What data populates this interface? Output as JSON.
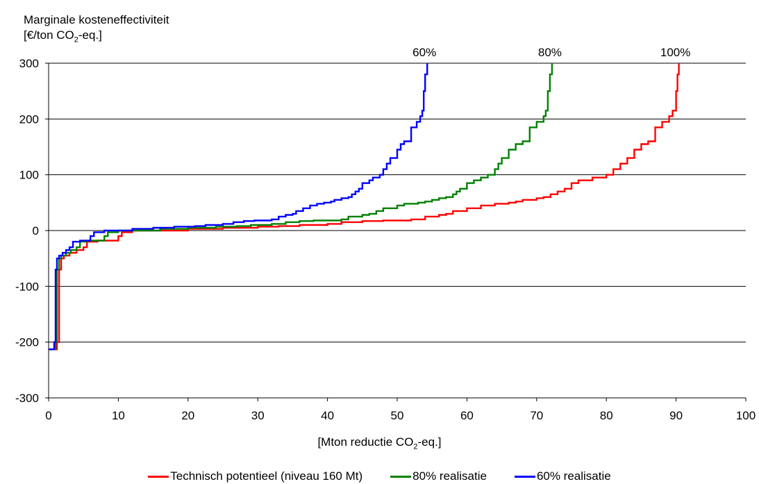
{
  "chart_data": {
    "type": "line",
    "ylabel_line1": "Marginale kosteneffectiviteit",
    "ylabel_line2_prefix": "[€/ton CO",
    "ylabel_line2_sub": "2",
    "ylabel_line2_suffix": "-eq.]",
    "xlabel_prefix": "[Mton reductie CO",
    "xlabel_sub": "2",
    "xlabel_suffix": "-eq.]",
    "xlim": [
      0,
      100
    ],
    "ylim": [
      -300,
      300
    ],
    "xticks": [
      0,
      10,
      20,
      30,
      40,
      50,
      60,
      70,
      80,
      90,
      100
    ],
    "yticks": [
      -300,
      -200,
      -100,
      0,
      100,
      200,
      300
    ],
    "grid": "horizontal",
    "legend_position": "bottom",
    "annotations": [
      {
        "text": "60%",
        "x": 54.3,
        "y": 300
      },
      {
        "text": "80%",
        "x": 72.3,
        "y": 300
      },
      {
        "text": "100%",
        "x": 90.3,
        "y": 300
      }
    ],
    "series": [
      {
        "name": "Technisch potentieel (niveau 160 Mt)",
        "color": "#ff0000",
        "points": [
          [
            0,
            -213
          ],
          [
            1.2,
            -213
          ],
          [
            1.2,
            -200
          ],
          [
            1.5,
            -200
          ],
          [
            1.5,
            -70
          ],
          [
            1.8,
            -70
          ],
          [
            1.8,
            -50
          ],
          [
            2.2,
            -50
          ],
          [
            2.2,
            -45
          ],
          [
            3,
            -45
          ],
          [
            3,
            -40
          ],
          [
            4,
            -40
          ],
          [
            4,
            -35
          ],
          [
            5,
            -35
          ],
          [
            5,
            -30
          ],
          [
            5.5,
            -30
          ],
          [
            5.5,
            -20
          ],
          [
            7,
            -20
          ],
          [
            7,
            -18
          ],
          [
            10,
            -18
          ],
          [
            10,
            -10
          ],
          [
            10.5,
            -10
          ],
          [
            10.5,
            -3
          ],
          [
            12,
            -3
          ],
          [
            12,
            0
          ],
          [
            20,
            0
          ],
          [
            20,
            3
          ],
          [
            25,
            3
          ],
          [
            25,
            5
          ],
          [
            30,
            5
          ],
          [
            30,
            7
          ],
          [
            33,
            7
          ],
          [
            33,
            8
          ],
          [
            36,
            8
          ],
          [
            36,
            10
          ],
          [
            40,
            10
          ],
          [
            40,
            12
          ],
          [
            42,
            12
          ],
          [
            42,
            15
          ],
          [
            45,
            15
          ],
          [
            45,
            17
          ],
          [
            48,
            17
          ],
          [
            48,
            18
          ],
          [
            52,
            18
          ],
          [
            52,
            20
          ],
          [
            54,
            20
          ],
          [
            54,
            25
          ],
          [
            56,
            25
          ],
          [
            56,
            28
          ],
          [
            57,
            28
          ],
          [
            57,
            30
          ],
          [
            58,
            30
          ],
          [
            58,
            35
          ],
          [
            60,
            35
          ],
          [
            60,
            40
          ],
          [
            62,
            40
          ],
          [
            62,
            45
          ],
          [
            64,
            45
          ],
          [
            64,
            48
          ],
          [
            66,
            48
          ],
          [
            66,
            50
          ],
          [
            67,
            50
          ],
          [
            67,
            52
          ],
          [
            68,
            52
          ],
          [
            68,
            55
          ],
          [
            70,
            55
          ],
          [
            70,
            58
          ],
          [
            71,
            58
          ],
          [
            71,
            60
          ],
          [
            72,
            60
          ],
          [
            72,
            65
          ],
          [
            73,
            65
          ],
          [
            73,
            70
          ],
          [
            74,
            70
          ],
          [
            74,
            75
          ],
          [
            75,
            75
          ],
          [
            75,
            85
          ],
          [
            76,
            85
          ],
          [
            76,
            90
          ],
          [
            78,
            90
          ],
          [
            78,
            95
          ],
          [
            80,
            95
          ],
          [
            80,
            100
          ],
          [
            81,
            100
          ],
          [
            81,
            110
          ],
          [
            82,
            110
          ],
          [
            82,
            120
          ],
          [
            83,
            120
          ],
          [
            83,
            130
          ],
          [
            84,
            130
          ],
          [
            84,
            145
          ],
          [
            85,
            145
          ],
          [
            85,
            155
          ],
          [
            86,
            155
          ],
          [
            86,
            160
          ],
          [
            87,
            160
          ],
          [
            87,
            185
          ],
          [
            88,
            185
          ],
          [
            88,
            195
          ],
          [
            89,
            195
          ],
          [
            89,
            205
          ],
          [
            89.5,
            205
          ],
          [
            89.5,
            215
          ],
          [
            90,
            215
          ],
          [
            90,
            250
          ],
          [
            90.2,
            250
          ],
          [
            90.2,
            280
          ],
          [
            90.4,
            280
          ],
          [
            90.4,
            300
          ]
        ]
      },
      {
        "name": "80% realisatie",
        "color": "#008000",
        "points": [
          [
            0,
            -213
          ],
          [
            1,
            -213
          ],
          [
            1,
            -200
          ],
          [
            1.2,
            -200
          ],
          [
            1.2,
            -70
          ],
          [
            1.5,
            -70
          ],
          [
            1.5,
            -50
          ],
          [
            1.8,
            -50
          ],
          [
            1.8,
            -45
          ],
          [
            2.5,
            -45
          ],
          [
            2.5,
            -40
          ],
          [
            3.2,
            -40
          ],
          [
            3.2,
            -35
          ],
          [
            4,
            -35
          ],
          [
            4,
            -30
          ],
          [
            4.5,
            -30
          ],
          [
            4.5,
            -20
          ],
          [
            5.5,
            -20
          ],
          [
            5.5,
            -18
          ],
          [
            8,
            -18
          ],
          [
            8,
            -10
          ],
          [
            8.5,
            -10
          ],
          [
            8.5,
            -3
          ],
          [
            10,
            -3
          ],
          [
            10,
            0
          ],
          [
            16,
            0
          ],
          [
            16,
            3
          ],
          [
            20,
            3
          ],
          [
            20,
            5
          ],
          [
            24,
            5
          ],
          [
            24,
            7
          ],
          [
            27,
            7
          ],
          [
            27,
            8
          ],
          [
            29,
            8
          ],
          [
            29,
            10
          ],
          [
            32,
            10
          ],
          [
            32,
            12
          ],
          [
            34,
            12
          ],
          [
            34,
            15
          ],
          [
            36,
            15
          ],
          [
            36,
            17
          ],
          [
            38,
            17
          ],
          [
            38,
            18
          ],
          [
            42,
            18
          ],
          [
            42,
            20
          ],
          [
            43,
            20
          ],
          [
            43,
            25
          ],
          [
            45,
            25
          ],
          [
            45,
            28
          ],
          [
            46,
            28
          ],
          [
            46,
            30
          ],
          [
            47,
            30
          ],
          [
            47,
            35
          ],
          [
            48,
            35
          ],
          [
            48,
            40
          ],
          [
            50,
            40
          ],
          [
            50,
            45
          ],
          [
            51,
            45
          ],
          [
            51,
            48
          ],
          [
            53,
            48
          ],
          [
            53,
            50
          ],
          [
            54,
            50
          ],
          [
            54,
            52
          ],
          [
            55,
            52
          ],
          [
            55,
            55
          ],
          [
            56,
            55
          ],
          [
            56,
            58
          ],
          [
            57,
            58
          ],
          [
            57,
            60
          ],
          [
            58,
            60
          ],
          [
            58,
            65
          ],
          [
            58.5,
            65
          ],
          [
            58.5,
            70
          ],
          [
            59,
            70
          ],
          [
            59,
            75
          ],
          [
            60,
            75
          ],
          [
            60,
            85
          ],
          [
            61,
            85
          ],
          [
            61,
            90
          ],
          [
            62,
            90
          ],
          [
            62,
            95
          ],
          [
            63,
            95
          ],
          [
            63,
            100
          ],
          [
            64,
            100
          ],
          [
            64,
            110
          ],
          [
            64.5,
            110
          ],
          [
            64.5,
            120
          ],
          [
            65,
            120
          ],
          [
            65,
            130
          ],
          [
            66,
            130
          ],
          [
            66,
            145
          ],
          [
            67,
            145
          ],
          [
            67,
            155
          ],
          [
            68,
            155
          ],
          [
            68,
            160
          ],
          [
            69,
            160
          ],
          [
            69,
            185
          ],
          [
            70,
            185
          ],
          [
            70,
            195
          ],
          [
            71,
            195
          ],
          [
            71,
            205
          ],
          [
            71.3,
            205
          ],
          [
            71.3,
            215
          ],
          [
            71.6,
            215
          ],
          [
            71.6,
            250
          ],
          [
            71.9,
            250
          ],
          [
            71.9,
            280
          ],
          [
            72.2,
            280
          ],
          [
            72.2,
            300
          ]
        ]
      },
      {
        "name": "60% realisatie",
        "color": "#0000ff",
        "points": [
          [
            0,
            -213
          ],
          [
            0.8,
            -213
          ],
          [
            0.8,
            -200
          ],
          [
            1,
            -200
          ],
          [
            1,
            -70
          ],
          [
            1.2,
            -70
          ],
          [
            1.2,
            -50
          ],
          [
            1.5,
            -50
          ],
          [
            1.5,
            -45
          ],
          [
            2,
            -45
          ],
          [
            2,
            -40
          ],
          [
            2.5,
            -40
          ],
          [
            2.5,
            -35
          ],
          [
            3,
            -35
          ],
          [
            3,
            -30
          ],
          [
            3.5,
            -30
          ],
          [
            3.5,
            -20
          ],
          [
            4.5,
            -20
          ],
          [
            4.5,
            -18
          ],
          [
            6,
            -18
          ],
          [
            6,
            -10
          ],
          [
            6.5,
            -10
          ],
          [
            6.5,
            -3
          ],
          [
            8,
            -3
          ],
          [
            8,
            0
          ],
          [
            12,
            0
          ],
          [
            12,
            3
          ],
          [
            15,
            3
          ],
          [
            15,
            5
          ],
          [
            18,
            5
          ],
          [
            18,
            7
          ],
          [
            21,
            7
          ],
          [
            21,
            8
          ],
          [
            22.5,
            8
          ],
          [
            22.5,
            10
          ],
          [
            25,
            10
          ],
          [
            25,
            12
          ],
          [
            26.5,
            12
          ],
          [
            26.5,
            15
          ],
          [
            28,
            15
          ],
          [
            28,
            17
          ],
          [
            29.5,
            17
          ],
          [
            29.5,
            18
          ],
          [
            32,
            18
          ],
          [
            32,
            20
          ],
          [
            33,
            20
          ],
          [
            33,
            25
          ],
          [
            34,
            25
          ],
          [
            34,
            28
          ],
          [
            35,
            28
          ],
          [
            35,
            30
          ],
          [
            35.5,
            30
          ],
          [
            35.5,
            35
          ],
          [
            36.5,
            35
          ],
          [
            36.5,
            40
          ],
          [
            37.5,
            40
          ],
          [
            37.5,
            45
          ],
          [
            38.5,
            45
          ],
          [
            38.5,
            48
          ],
          [
            39.5,
            48
          ],
          [
            39.5,
            50
          ],
          [
            40.5,
            50
          ],
          [
            40.5,
            52
          ],
          [
            41,
            52
          ],
          [
            41,
            55
          ],
          [
            42,
            55
          ],
          [
            42,
            58
          ],
          [
            43,
            58
          ],
          [
            43,
            60
          ],
          [
            43.5,
            60
          ],
          [
            43.5,
            65
          ],
          [
            44,
            65
          ],
          [
            44,
            70
          ],
          [
            44.5,
            70
          ],
          [
            44.5,
            75
          ],
          [
            45,
            75
          ],
          [
            45,
            85
          ],
          [
            46,
            85
          ],
          [
            46,
            90
          ],
          [
            46.5,
            90
          ],
          [
            46.5,
            95
          ],
          [
            47.5,
            95
          ],
          [
            47.5,
            100
          ],
          [
            48,
            100
          ],
          [
            48,
            110
          ],
          [
            48.5,
            110
          ],
          [
            48.5,
            120
          ],
          [
            49,
            120
          ],
          [
            49,
            130
          ],
          [
            50,
            130
          ],
          [
            50,
            145
          ],
          [
            50.5,
            145
          ],
          [
            50.5,
            155
          ],
          [
            51,
            155
          ],
          [
            51,
            160
          ],
          [
            52,
            160
          ],
          [
            52,
            185
          ],
          [
            52.8,
            185
          ],
          [
            52.8,
            195
          ],
          [
            53.3,
            195
          ],
          [
            53.3,
            205
          ],
          [
            53.6,
            205
          ],
          [
            53.6,
            215
          ],
          [
            53.8,
            215
          ],
          [
            53.8,
            250
          ],
          [
            54,
            250
          ],
          [
            54,
            280
          ],
          [
            54.3,
            280
          ],
          [
            54.3,
            300
          ]
        ]
      }
    ]
  }
}
